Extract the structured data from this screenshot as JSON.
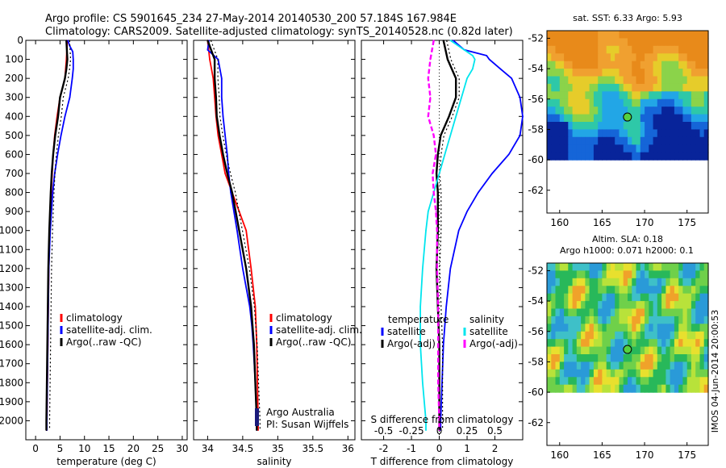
{
  "header": {
    "line1": "Argo profile: CS 5901645_234 27-May-2014 20140530_200 57.184S 167.984E",
    "line2": "Climatology: CARS2009. Satellite-adjusted climatology: synTS_20140528.nc (0.82d later)"
  },
  "credit": {
    "org": "Argo Australia",
    "pi": "PI: Susan Wijffels",
    "stamp": "IMOS 04-Jun-2014 20:00:53"
  },
  "colors": {
    "climatology": "#ff0000",
    "satellite": "#0000ff",
    "argo": "#000000",
    "salinity_satellite": "#00e5ee",
    "salinity_argo": "#ff00ff"
  },
  "chart_data": [
    {
      "type": "line",
      "name": "temperature",
      "xlabel": "temperature (deg C)",
      "ylabel": "",
      "xlim": [
        -2,
        31
      ],
      "ylim": [
        0,
        2100
      ],
      "x_ticks": [
        0,
        5,
        10,
        15,
        20,
        25,
        30
      ],
      "y_ticks": [
        0,
        100,
        200,
        300,
        400,
        500,
        600,
        700,
        800,
        900,
        1000,
        1100,
        1200,
        1300,
        1400,
        1500,
        1600,
        1700,
        1800,
        1900,
        2000
      ],
      "legend": [
        "climatology",
        "satellite-adj. clim.",
        "Argo(..raw -QC)"
      ],
      "series": [
        {
          "name": "climatology",
          "depth": [
            0,
            100,
            200,
            300,
            400,
            500,
            600,
            700,
            800,
            1000,
            1200,
            1400,
            1600,
            1800,
            2000,
            2050
          ],
          "values": [
            6.5,
            6.3,
            6.0,
            5.0,
            4.4,
            3.9,
            3.6,
            3.4,
            3.2,
            2.9,
            2.7,
            2.6,
            2.5,
            2.4,
            2.3,
            2.3
          ]
        },
        {
          "name": "satellite-adj. clim.",
          "depth": [
            0,
            30,
            60,
            100,
            150,
            200,
            300,
            400,
            500,
            600,
            700,
            800,
            1000,
            1200,
            1400,
            1600,
            1800,
            2000,
            2050
          ],
          "values": [
            6.6,
            7.0,
            7.6,
            7.7,
            7.7,
            7.5,
            7.0,
            6.0,
            5.2,
            4.5,
            3.9,
            3.5,
            3.0,
            2.7,
            2.6,
            2.5,
            2.4,
            2.3,
            2.3
          ]
        },
        {
          "name": "Argo(..raw -QC)",
          "depth": [
            0,
            50,
            100,
            150,
            200,
            250,
            300,
            400,
            500,
            600,
            700,
            800,
            1000,
            1200,
            1400,
            1600,
            1800,
            2000,
            2050
          ],
          "values": [
            6.3,
            6.4,
            6.5,
            6.3,
            6.0,
            5.5,
            5.0,
            4.6,
            4.0,
            3.6,
            3.3,
            3.1,
            2.8,
            2.6,
            2.5,
            2.4,
            2.3,
            2.2,
            2.2
          ]
        }
      ]
    },
    {
      "type": "line",
      "name": "salinity",
      "xlabel": "salinity",
      "ylabel": "",
      "xlim": [
        33.8,
        36.1
      ],
      "ylim": [
        0,
        2100
      ],
      "x_ticks": [
        34,
        34.5,
        35,
        35.5,
        36
      ],
      "legend": [
        "climatology",
        "satellite-adj. clim.",
        "Argo(..raw -QC)"
      ],
      "series": [
        {
          "name": "climatology",
          "depth": [
            0,
            100,
            200,
            300,
            400,
            500,
            600,
            700,
            800,
            900,
            1000,
            1200,
            1400,
            1600,
            1800,
            2000,
            2050
          ],
          "values": [
            34.0,
            34.03,
            34.08,
            34.1,
            34.12,
            34.15,
            34.2,
            34.25,
            34.35,
            34.45,
            34.55,
            34.62,
            34.68,
            34.7,
            34.71,
            34.72,
            34.72
          ]
        },
        {
          "name": "satellite-adj. clim.",
          "depth": [
            0,
            50,
            100,
            200,
            300,
            400,
            500,
            600,
            700,
            800,
            1000,
            1200,
            1300,
            1400,
            1500,
            1600,
            1800,
            2000,
            2050
          ],
          "values": [
            34.02,
            34.0,
            34.15,
            34.2,
            34.2,
            34.22,
            34.25,
            34.28,
            34.3,
            34.33,
            34.42,
            34.5,
            34.55,
            34.6,
            34.63,
            34.65,
            34.68,
            34.7,
            34.7
          ]
        },
        {
          "name": "Argo(..raw -QC)",
          "depth": [
            0,
            50,
            100,
            200,
            300,
            400,
            500,
            600,
            700,
            800,
            1000,
            1200,
            1400,
            1600,
            1800,
            2000,
            2050
          ],
          "values": [
            34.0,
            34.05,
            34.1,
            34.1,
            34.12,
            34.13,
            34.17,
            34.22,
            34.28,
            34.35,
            34.45,
            34.55,
            34.62,
            34.66,
            34.68,
            34.7,
            34.7
          ]
        }
      ]
    },
    {
      "type": "line",
      "name": "difference",
      "xlabel": "T difference from climatology",
      "xlabel_top": "S difference from climatology",
      "ylabel": "",
      "xlim": [
        -2.8,
        3.0
      ],
      "ylim": [
        0,
        2100
      ],
      "x_ticks": [
        -2,
        -1,
        0,
        1,
        2
      ],
      "x_ticks_top": [
        -0.5,
        -0.25,
        0,
        0.25,
        0.5
      ],
      "legend_left_title": "temperature",
      "legend_right_title": "salinity",
      "legend": [
        "satellite",
        "Argo(-adj)",
        "satellite",
        "Argo(-adj)"
      ],
      "series": [
        {
          "name": "T satellite",
          "depth": [
            0,
            50,
            80,
            100,
            150,
            200,
            300,
            400,
            500,
            600,
            700,
            800,
            900,
            1000,
            1200,
            1400,
            1600,
            1800,
            2000,
            2050
          ],
          "values": [
            0.5,
            0.9,
            1.7,
            1.8,
            2.2,
            2.6,
            2.9,
            3.0,
            2.9,
            2.5,
            1.9,
            1.4,
            1.0,
            0.7,
            0.4,
            0.25,
            0.15,
            0.1,
            0.05,
            0.05
          ]
        },
        {
          "name": "T Argo(-adj)",
          "depth": [
            0,
            100,
            200,
            300,
            400,
            500,
            600,
            700,
            800,
            900,
            1000,
            1200,
            1400,
            1600,
            1800,
            2000,
            2050
          ],
          "values": [
            0.15,
            0.3,
            0.6,
            0.6,
            0.35,
            0.05,
            -0.05,
            -0.1,
            -0.05,
            -0.05,
            -0.05,
            -0.1,
            -0.05,
            0.0,
            0.0,
            0.0,
            0.0
          ]
        },
        {
          "name": "S satellite",
          "depth": [
            0,
            80,
            100,
            150,
            200,
            300,
            400,
            500,
            600,
            700,
            800,
            900,
            1000,
            1200,
            1400,
            1600,
            1800,
            2000,
            2050
          ],
          "values": [
            0.1,
            0.3,
            0.32,
            0.3,
            0.25,
            0.2,
            0.15,
            0.1,
            0.05,
            0.0,
            -0.05,
            -0.1,
            -0.12,
            -0.15,
            -0.17,
            -0.17,
            -0.15,
            -0.12,
            -0.12
          ]
        },
        {
          "name": "S Argo(-adj)",
          "depth": [
            0,
            100,
            200,
            300,
            400,
            500,
            600,
            700,
            800,
            900,
            1000,
            1200,
            1400,
            1600,
            1800,
            2000,
            2050
          ],
          "values": [
            -0.05,
            -0.08,
            -0.1,
            -0.08,
            -0.1,
            -0.05,
            -0.03,
            -0.06,
            -0.05,
            -0.03,
            -0.02,
            -0.02,
            -0.01,
            -0.01,
            -0.01,
            0.0,
            0.0
          ]
        }
      ]
    }
  ],
  "maps": [
    {
      "title": "sat. SST: 6.33 Argo: 5.93",
      "subtitle": "",
      "x_ticks": [
        160,
        165,
        170,
        175
      ],
      "y_ticks": [
        -52,
        -54,
        -56,
        -58,
        -60,
        -62
      ],
      "marker": [
        167.984,
        -57.184
      ]
    },
    {
      "title": "Altim. SLA: 0.18",
      "subtitle": "Argo h1000: 0.071 h2000: 0.1",
      "x_ticks": [
        160,
        165,
        170,
        175
      ],
      "y_ticks": [
        -52,
        -54,
        -56,
        -58,
        -60,
        -62
      ],
      "marker": [
        167.984,
        -57.184
      ]
    }
  ]
}
